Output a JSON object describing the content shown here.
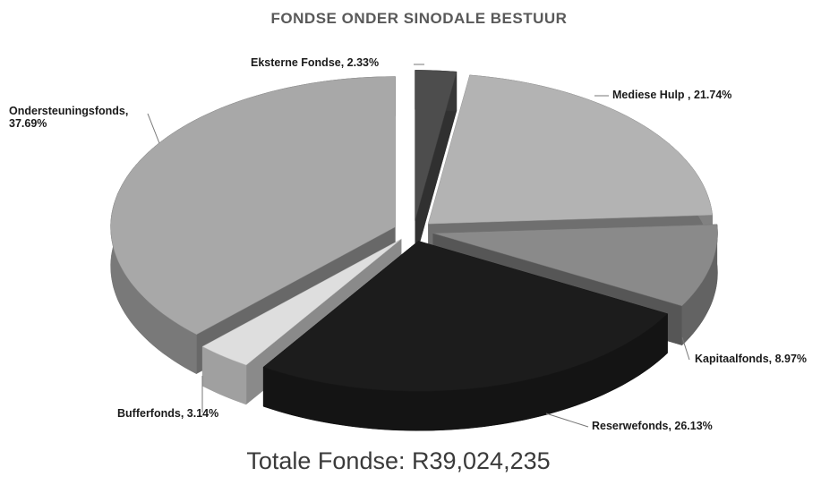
{
  "chart_data": {
    "type": "pie",
    "title": "FONDSE ONDER SINODALE BESTUUR",
    "values": [
      2.33,
      21.74,
      8.97,
      26.13,
      3.14,
      37.69
    ],
    "value_labels": [
      "Eksterne Fondse, 2.33%",
      "Mediese Hulp , 21.74%",
      "Kapitaalfonds, 8.97%",
      "Reserwefonds, 26.13%",
      "Bufferfonds, 3.14%",
      "Ondersteuningsfonds, 37.69%"
    ],
    "colors": [
      "#4d4d4d",
      "#b3b3b3",
      "#8a8a8a",
      "#1c1c1c",
      "#dedede",
      "#a8a8a8"
    ],
    "annotation": "Totale Fondse: R39,024,235"
  }
}
